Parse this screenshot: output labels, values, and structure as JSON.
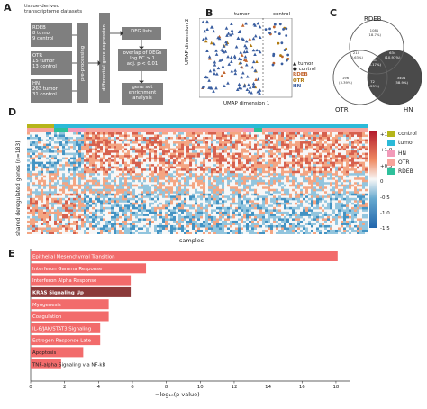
{
  "panels": {
    "a": "A",
    "b": "B",
    "c": "C",
    "d": "D",
    "e": "E"
  },
  "panelA": {
    "heading": [
      "tissue-derived",
      "transcriptome datasets"
    ],
    "rdeb": [
      "RDEB",
      "8 tumor",
      "9 control"
    ],
    "otr": [
      "OTR",
      "15 tumor",
      "13 control"
    ],
    "hn": [
      "HN",
      "263 tumor",
      "31 control"
    ],
    "preprocessing": "pre-processing",
    "dge": "differential gene expression",
    "deg_lists": "DEG lists",
    "overlap": [
      "overlap of DEGs",
      "log FC > 1",
      "adj. p < 0.01"
    ],
    "gsea": [
      "gene set",
      "enrichment",
      "analysis"
    ]
  },
  "panelB": {
    "tumor": "tumor",
    "control": "control",
    "xlabel": "UMAP dimension 1",
    "ylabel": "UMAP dimension 2",
    "legend": [
      {
        "label": "tumor",
        "symbol": "▲"
      },
      {
        "label": "control",
        "symbol": "●"
      },
      {
        "label": "RDEB",
        "color": "#c0622b"
      },
      {
        "label": "OTR",
        "color": "#b07a10"
      },
      {
        "label": "HN",
        "color": "#3a5ea0"
      }
    ]
  },
  "panelC": {
    "sets": [
      "RDEB",
      "OTR",
      "HN"
    ],
    "regions": {
      "rdeb_only": [
        "1081",
        "(18.7%)"
      ],
      "rdeb_otr": [
        "210",
        "(3.63%)"
      ],
      "rdeb_hn": [
        "634",
        "(10.97%)"
      ],
      "all": [
        "183",
        "(3.17%)"
      ],
      "otr_only": [
        "196",
        "(3.39%)"
      ],
      "otr_hn": [
        "72",
        "(1.25%)"
      ],
      "hn_only": [
        "3404",
        "(58.9%)"
      ]
    }
  },
  "panelD": {
    "ylabel": "shared deregulated genes (n=183)",
    "xlabel": "samples",
    "scale": [
      "+1.5",
      "+1.0",
      "+0.5",
      "0",
      "-0.5",
      "-1.0",
      "-1.5"
    ],
    "legend": [
      {
        "label": "control",
        "color": "#b5b51a"
      },
      {
        "label": "tumor",
        "color": "#2bbad8"
      },
      {
        "label": "HN",
        "color": "#f29ab9"
      },
      {
        "label": "OTR",
        "color": "#f7a39b"
      },
      {
        "label": "RDEB",
        "color": "#2ec09b"
      }
    ]
  },
  "chart_data": {
    "type": "bar",
    "orientation": "horizontal",
    "categories": [
      "Epithelial Mesenchymal Transition",
      "Interferon Gamma Response",
      "Interferon Alpha Response",
      "KRAS Signaling Up",
      "Myogenesis",
      "Coagulation",
      "IL-6/JAK/STAT3 Signaling",
      "Estrogen Response Late",
      "Apoptosis",
      "TNF-alpha Signaling via NF-kB"
    ],
    "values": [
      18.1,
      6.8,
      5.9,
      5.9,
      4.6,
      4.6,
      4.1,
      4.1,
      3.1,
      1.8
    ],
    "highlight": "KRAS Signaling Up",
    "xlabel": "−log₁₀(p-value)",
    "xlim": [
      0,
      18.8
    ],
    "xticks": [
      "0",
      "2",
      "4",
      "6",
      "8",
      "10",
      "12",
      "14",
      "16",
      "18"
    ],
    "colors": {
      "bar": "#f26b6b",
      "highlight": "#8b3a3a"
    }
  }
}
